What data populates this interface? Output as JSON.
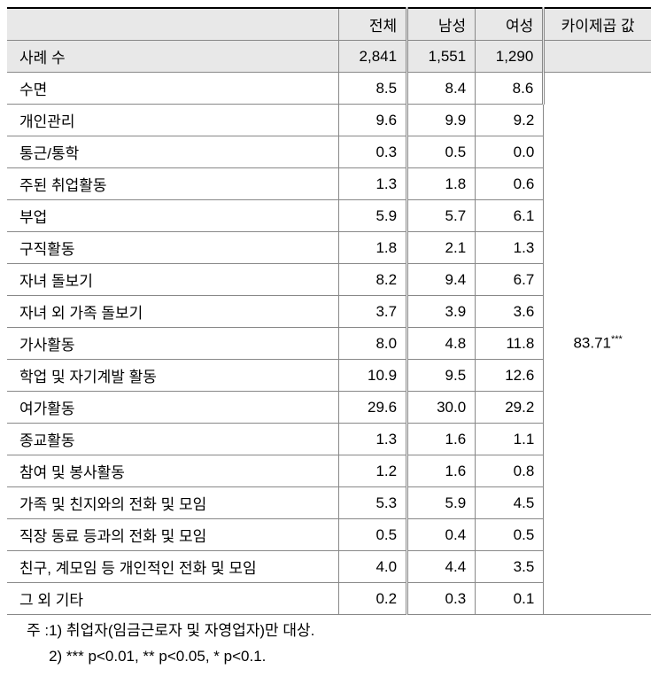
{
  "table": {
    "headers": {
      "label": "",
      "total": "전체",
      "male": "남성",
      "female": "여성",
      "chi": "카이제곱 값"
    },
    "caseRow": {
      "label": "사례 수",
      "total": "2,841",
      "male": "1,551",
      "female": "1,290"
    },
    "chiValue": "83.71",
    "chiStars": "***",
    "rows": [
      {
        "label": "수면",
        "total": "8.5",
        "male": "8.4",
        "female": "8.6"
      },
      {
        "label": "개인관리",
        "total": "9.6",
        "male": "9.9",
        "female": "9.2"
      },
      {
        "label": "통근/통학",
        "total": "0.3",
        "male": "0.5",
        "female": "0.0"
      },
      {
        "label": "주된 취업활동",
        "total": "1.3",
        "male": "1.8",
        "female": "0.6"
      },
      {
        "label": "부업",
        "total": "5.9",
        "male": "5.7",
        "female": "6.1"
      },
      {
        "label": "구직활동",
        "total": "1.8",
        "male": "2.1",
        "female": "1.3"
      },
      {
        "label": "자녀 돌보기",
        "total": "8.2",
        "male": "9.4",
        "female": "6.7"
      },
      {
        "label": "자녀 외 가족 돌보기",
        "total": "3.7",
        "male": "3.9",
        "female": "3.6"
      },
      {
        "label": "가사활동",
        "total": "8.0",
        "male": "4.8",
        "female": "11.8"
      },
      {
        "label": "학업 및 자기계발 활동",
        "total": "10.9",
        "male": "9.5",
        "female": "12.6"
      },
      {
        "label": "여가활동",
        "total": "29.6",
        "male": "30.0",
        "female": "29.2"
      },
      {
        "label": "종교활동",
        "total": "1.3",
        "male": "1.6",
        "female": "1.1"
      },
      {
        "label": "참여 및 봉사활동",
        "total": "1.2",
        "male": "1.6",
        "female": "0.8"
      },
      {
        "label": "가족 및 친지와의 전화 및 모임",
        "total": "5.3",
        "male": "5.9",
        "female": "4.5"
      },
      {
        "label": "직장 동료 등과의 전화 및 모임",
        "total": "0.5",
        "male": "0.4",
        "female": "0.5"
      },
      {
        "label": "친구, 계모임 등 개인적인 전화 및 모임",
        "total": "4.0",
        "male": "4.4",
        "female": "3.5"
      },
      {
        "label": "그 외 기타",
        "total": "0.2",
        "male": "0.3",
        "female": "0.1"
      }
    ]
  },
  "notes": {
    "prefix": "주 :",
    "line1": "1) 취업자(임금근로자 및 자영업자)만 대상.",
    "line2": "2) *** p<0.01, ** p<0.05, * p<0.1."
  },
  "colors": {
    "headerBg": "#e8e8e8",
    "border": "#888888",
    "topBorder": "#000000",
    "background": "#ffffff"
  }
}
